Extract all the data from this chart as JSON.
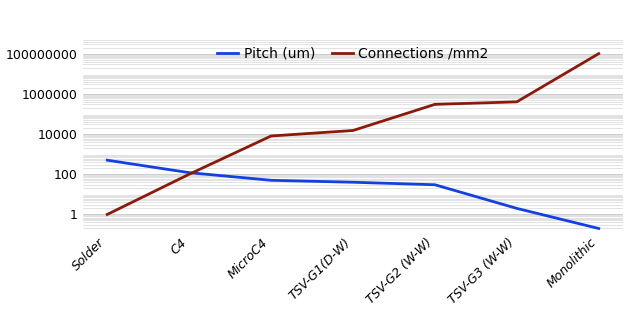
{
  "categories": [
    "Solder",
    "C4",
    "MicroC4",
    "TSV-G1(D-W)",
    "TSV-G2 (W-W)",
    "TSV-G3 (W-W)",
    "Monolithic"
  ],
  "pitch_um": [
    500,
    120,
    50,
    40,
    30,
    2,
    0.2
  ],
  "connections_mm2": [
    1,
    100,
    8000,
    15000,
    300000,
    400000,
    100000000
  ],
  "pitch_color": "#1440e0",
  "connections_color": "#8b1a0a",
  "pitch_label": "Pitch (um)",
  "connections_label": "Connections /mm2",
  "ylim_min": 0.15,
  "ylim_max": 500000000,
  "background_color": "#ffffff",
  "plot_bg_color": "#ffffff",
  "grid_color": "#cccccc",
  "linewidth": 2.0,
  "legend_fontsize": 10,
  "tick_fontsize": 9,
  "xlabel_rotation": 45,
  "yticks": [
    1,
    100,
    10000,
    1000000,
    100000000
  ],
  "ytick_labels": [
    "1",
    "100",
    "10000",
    "1000000",
    "100000000"
  ]
}
